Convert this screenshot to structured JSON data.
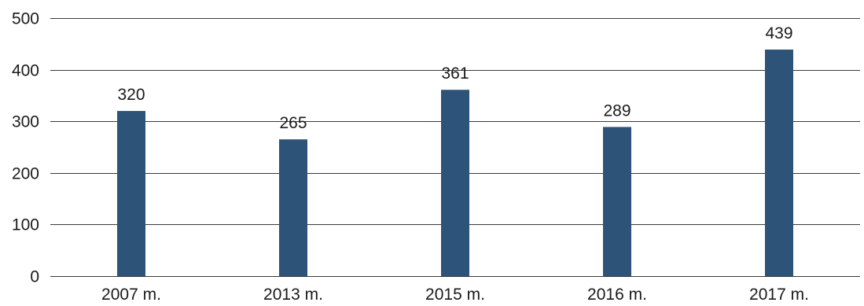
{
  "chart_data": {
    "type": "bar",
    "title": "",
    "xlabel": "",
    "ylabel": "",
    "categories": [
      "2007 m.",
      "2013 m.",
      "2015 m.",
      "2016 m.",
      "2017 m."
    ],
    "values": [
      320,
      265,
      361,
      289,
      439
    ],
    "data_labels": [
      "320",
      "265",
      "361",
      "289",
      "439"
    ],
    "ylim": [
      0,
      500
    ],
    "yticks": [
      0,
      100,
      200,
      300,
      400,
      500
    ],
    "ytick_labels": [
      "0",
      "100",
      "200",
      "300",
      "400",
      "500"
    ],
    "grid": true,
    "legend": "none",
    "bar_color": "#2e5378"
  }
}
